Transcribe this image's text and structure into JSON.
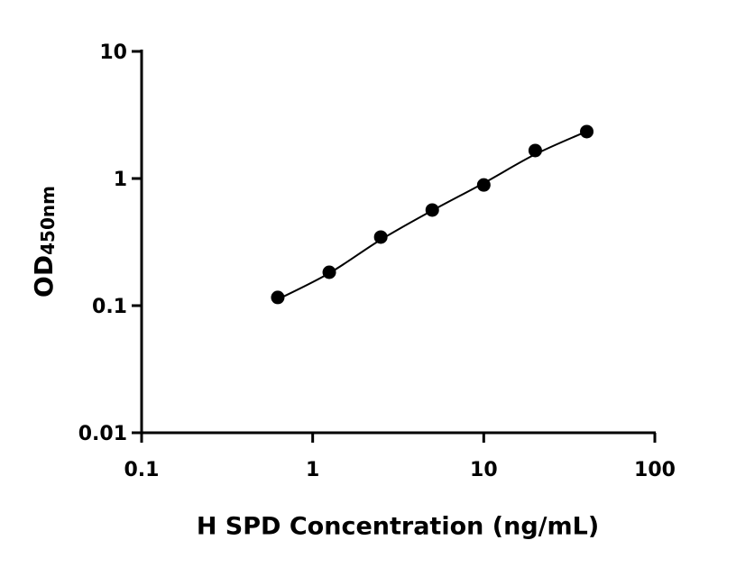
{
  "chart_data": {
    "type": "scatter",
    "x_label": "H SPD Concentration (ng/mL)",
    "y_label": "OD",
    "y_label_sub": "450nm",
    "xscale": "log",
    "yscale": "log",
    "xlim": [
      0.1,
      100
    ],
    "xticks": [
      0.1,
      1,
      10,
      100
    ],
    "ylim": [
      0.01,
      10
    ],
    "yticks": [
      0.01,
      0.1,
      1,
      10
    ],
    "series": [
      {
        "x": [
          0.625,
          1.25,
          2.5,
          5,
          10,
          20,
          40
        ],
        "values": [
          0.116,
          0.183,
          0.346,
          0.565,
          0.89,
          1.66,
          2.34
        ],
        "color": "#000000"
      }
    ],
    "fit": {
      "x": [
        0.625,
        1.25,
        2.5,
        5,
        10,
        20,
        40
      ],
      "values": [
        0.112,
        0.18,
        0.33,
        0.56,
        0.92,
        1.55,
        2.35
      ],
      "color": "#000000"
    }
  }
}
